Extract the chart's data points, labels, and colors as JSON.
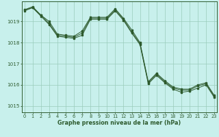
{
  "x": [
    0,
    1,
    2,
    3,
    4,
    5,
    6,
    7,
    8,
    9,
    10,
    11,
    12,
    13,
    14,
    15,
    16,
    17,
    18,
    19,
    20,
    21,
    22,
    23
  ],
  "series1": [
    1019.55,
    1019.65,
    1019.3,
    1018.9,
    1018.35,
    1018.3,
    1018.25,
    1018.45,
    1019.15,
    1019.15,
    1019.15,
    1019.55,
    1019.1,
    1018.5,
    1017.95,
    1016.1,
    1016.5,
    1016.15,
    1015.85,
    1015.75,
    1015.75,
    1015.95,
    1016.05,
    1015.45
  ],
  "series2": [
    1019.55,
    1019.7,
    1019.3,
    1019.0,
    1018.4,
    1018.35,
    1018.3,
    1018.55,
    1019.2,
    1019.2,
    1019.2,
    1019.6,
    1019.15,
    1018.6,
    1018.0,
    1016.15,
    1016.55,
    1016.2,
    1015.9,
    1015.8,
    1015.8,
    1016.0,
    1016.1,
    1015.5
  ],
  "series3": [
    1019.5,
    1019.65,
    1019.25,
    1018.85,
    1018.3,
    1018.25,
    1018.2,
    1018.35,
    1019.1,
    1019.1,
    1019.1,
    1019.5,
    1019.05,
    1018.45,
    1017.9,
    1016.05,
    1016.45,
    1016.1,
    1015.8,
    1015.65,
    1015.7,
    1015.85,
    1016.0,
    1015.4
  ],
  "bg_color": "#c8f0ec",
  "grid_color": "#99ccbb",
  "line_color": "#2d5a2d",
  "xlabel": "Graphe pression niveau de la mer (hPa)",
  "yticks": [
    1015,
    1016,
    1017,
    1018,
    1019
  ],
  "xticks": [
    0,
    1,
    2,
    3,
    4,
    5,
    6,
    7,
    8,
    9,
    10,
    11,
    12,
    13,
    14,
    15,
    16,
    17,
    18,
    19,
    20,
    21,
    22,
    23
  ],
  "ylim": [
    1014.7,
    1019.95
  ],
  "xlim": [
    -0.3,
    23.3
  ]
}
